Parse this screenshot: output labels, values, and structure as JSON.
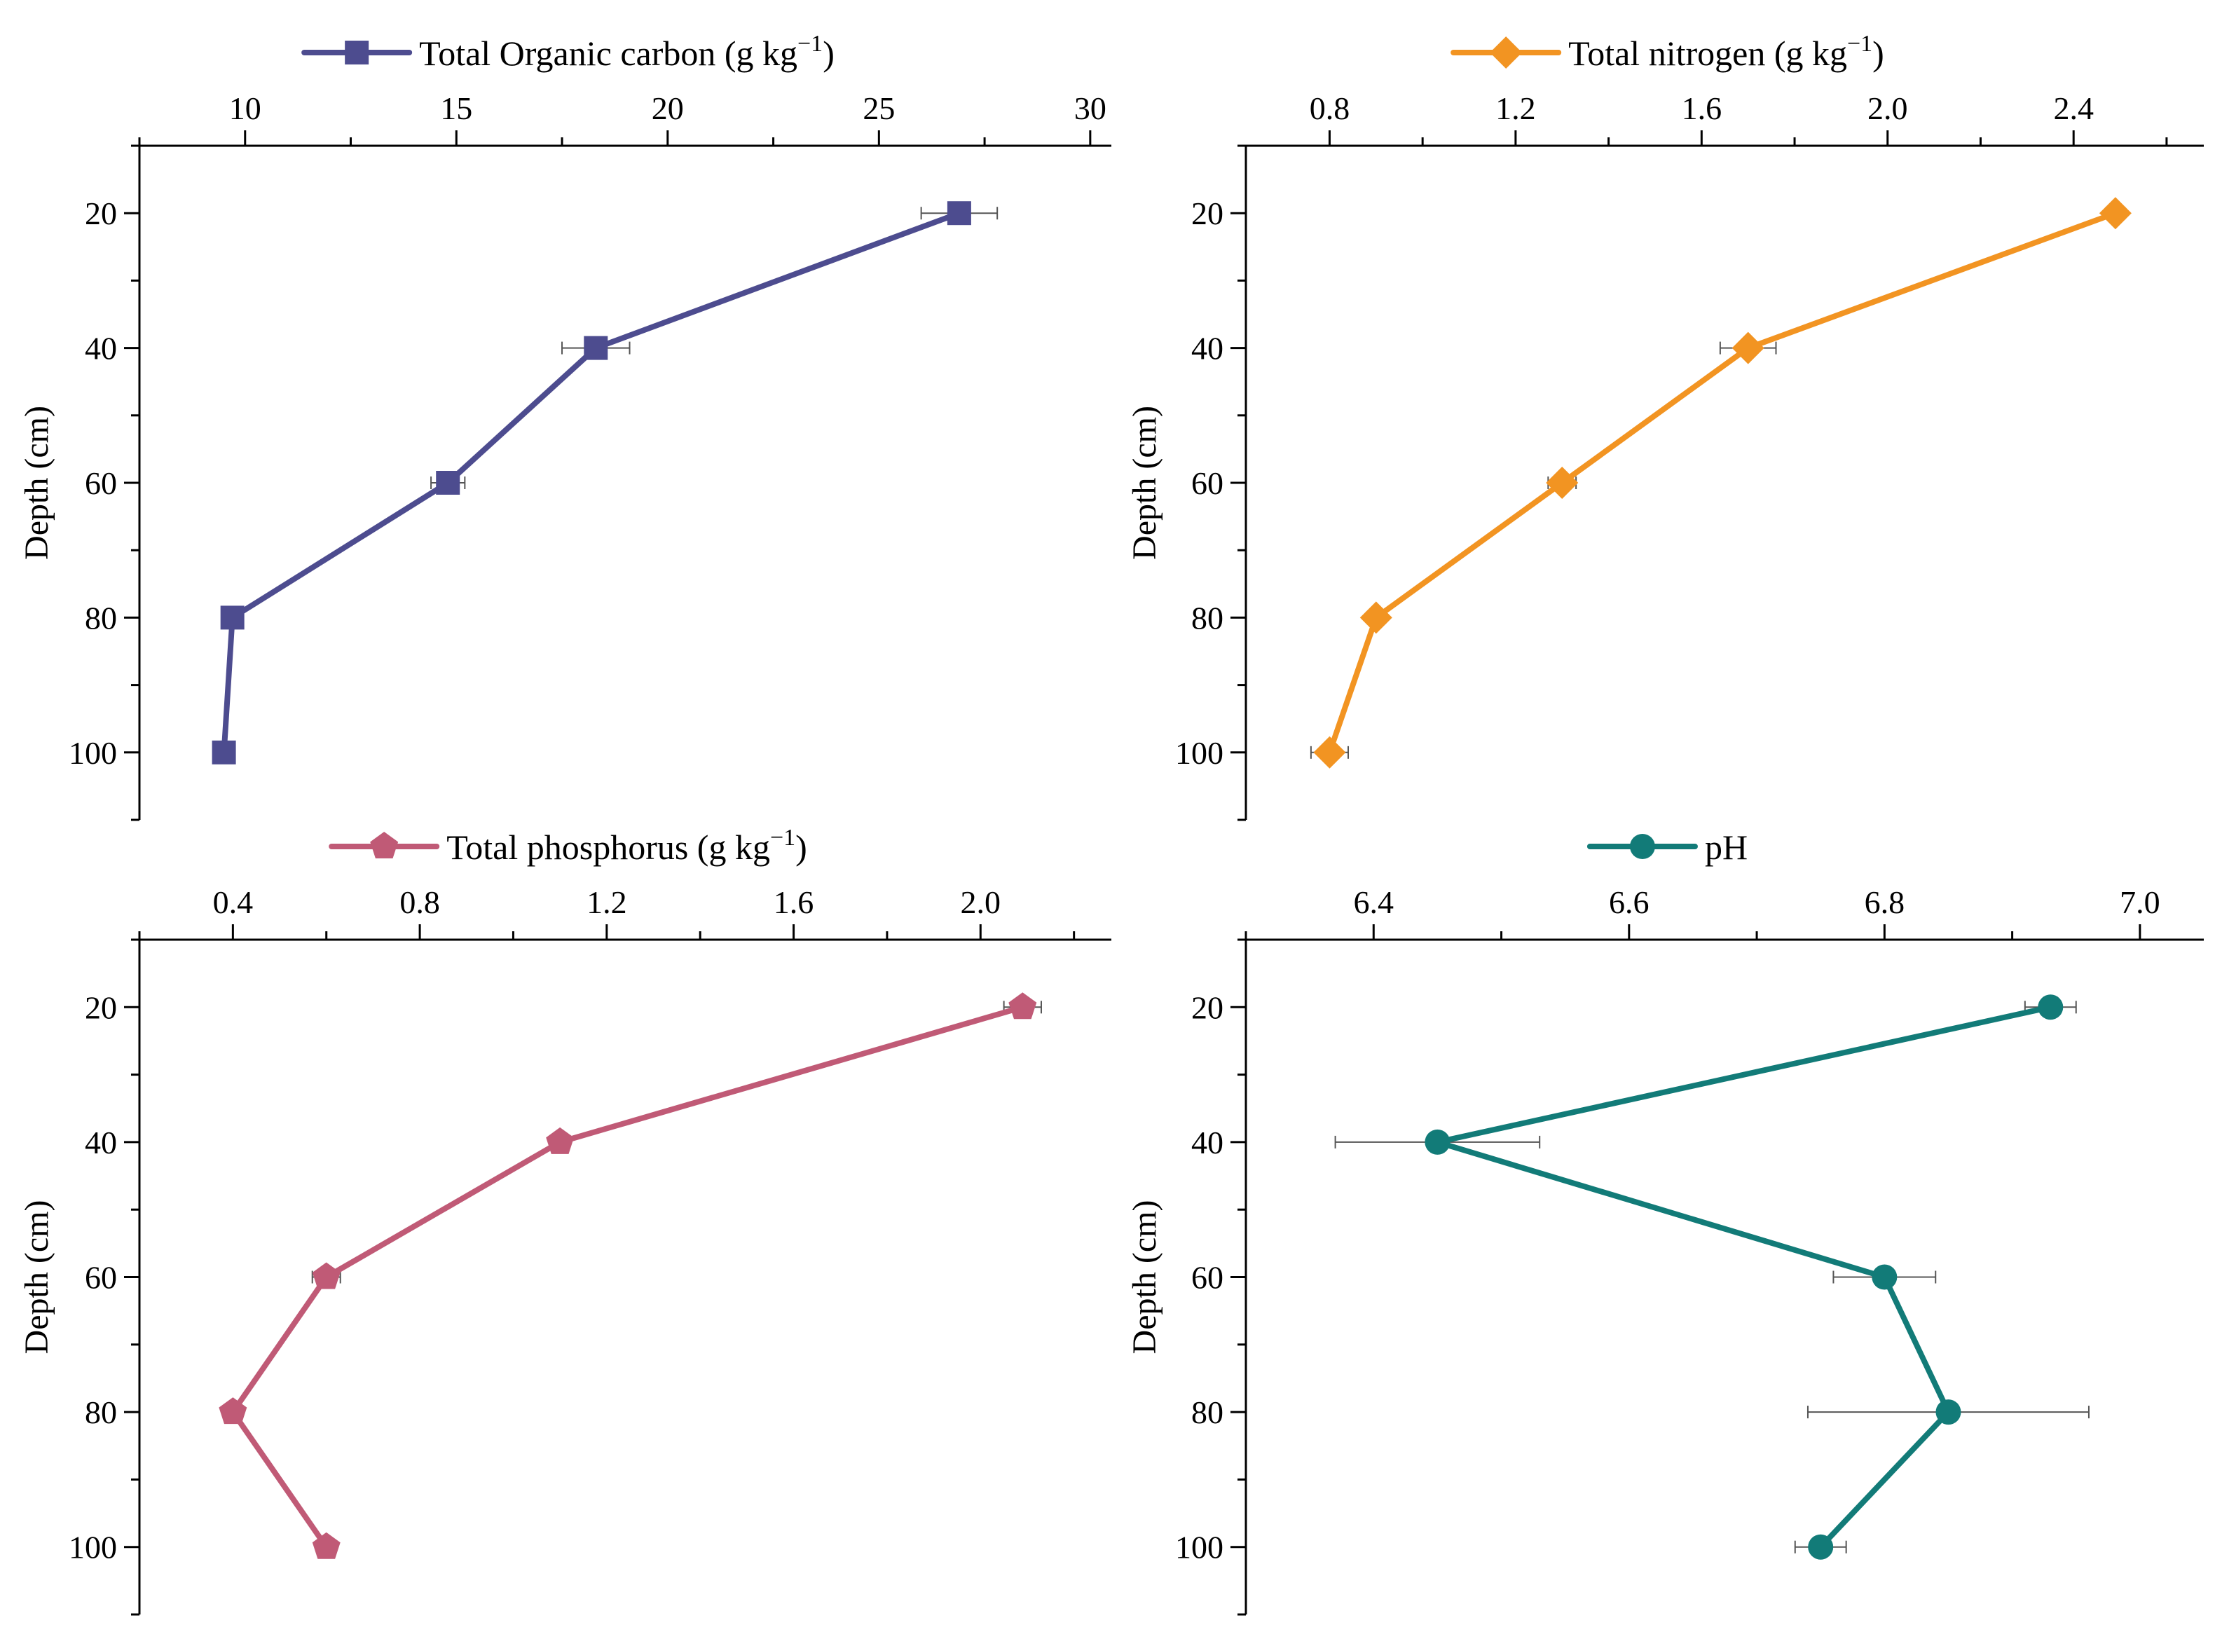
{
  "chart_data": [
    {
      "type": "line",
      "title": "",
      "xlabel": "",
      "ylabel": "Depth (cm)",
      "legend": {
        "label": "Total Organic carbon (g kg",
        "superscript": "−1",
        "suffix": ")",
        "marker": "square",
        "placement": "top"
      },
      "color": "#4d4c8f",
      "xaxis_position": "top",
      "xlim": [
        7.5,
        30.5
      ],
      "xticks": [
        10,
        15,
        20,
        25,
        30
      ],
      "xtick_labels": [
        "10",
        "15",
        "20",
        "25",
        "30"
      ],
      "ylim": [
        10,
        110
      ],
      "yticks": [
        20,
        40,
        60,
        80,
        100
      ],
      "ytick_labels": [
        "20",
        "40",
        "60",
        "80",
        "100"
      ],
      "series": [
        {
          "name": "Total Organic carbon",
          "x": [
            26.9,
            18.3,
            14.8,
            9.7,
            9.5
          ],
          "y": [
            20,
            40,
            60,
            80,
            100
          ],
          "xerr": [
            0.9,
            0.8,
            0.4,
            0.2,
            0.2
          ]
        }
      ]
    },
    {
      "type": "line",
      "title": "",
      "xlabel": "",
      "ylabel": "Depth (cm)",
      "legend": {
        "label": "Total nitrogen (g kg",
        "superscript": "−1",
        "suffix": ")",
        "marker": "diamond",
        "placement": "top"
      },
      "color": "#f29422",
      "xaxis_position": "top",
      "xlim": [
        0.62,
        2.68
      ],
      "xticks": [
        0.8,
        1.2,
        1.6,
        2.0,
        2.4
      ],
      "xtick_labels": [
        "0.8",
        "1.2",
        "1.6",
        "2.0",
        "2.4"
      ],
      "ylim": [
        10,
        110
      ],
      "yticks": [
        20,
        40,
        60,
        80,
        100
      ],
      "ytick_labels": [
        "20",
        "40",
        "60",
        "80",
        "100"
      ],
      "series": [
        {
          "name": "Total nitrogen",
          "x": [
            2.49,
            1.7,
            1.3,
            0.9,
            0.8
          ],
          "y": [
            20,
            40,
            60,
            80,
            100
          ],
          "xerr": [
            0.02,
            0.06,
            0.03,
            0.02,
            0.04
          ]
        }
      ]
    },
    {
      "type": "line",
      "title": "",
      "xlabel": "",
      "ylabel": "Depth (cm)",
      "legend": {
        "label": "Total phosphorus (g kg",
        "superscript": "−1",
        "suffix": ")",
        "marker": "pentagon",
        "placement": "top"
      },
      "color": "#c05a76",
      "xaxis_position": "top",
      "xlim": [
        0.2,
        2.28
      ],
      "xticks": [
        0.4,
        0.8,
        1.2,
        1.6,
        2.0
      ],
      "xtick_labels": [
        "0.4",
        "0.8",
        "1.2",
        "1.6",
        "2.0"
      ],
      "ylim": [
        10,
        110
      ],
      "yticks": [
        20,
        40,
        60,
        80,
        100
      ],
      "ytick_labels": [
        "20",
        "40",
        "60",
        "80",
        "100"
      ],
      "series": [
        {
          "name": "Total phosphorus",
          "x": [
            2.09,
            1.1,
            0.6,
            0.4,
            0.6
          ],
          "y": [
            20,
            40,
            60,
            80,
            100
          ],
          "xerr": [
            0.04,
            0.02,
            0.03,
            0.02,
            0.02
          ]
        }
      ]
    },
    {
      "type": "line",
      "title": "",
      "xlabel": "",
      "ylabel": "Depth (cm)",
      "legend": {
        "label": "pH",
        "superscript": "",
        "suffix": "",
        "marker": "circle",
        "placement": "top"
      },
      "color": "#127b78",
      "xaxis_position": "top",
      "xlim": [
        6.3,
        7.05
      ],
      "xticks": [
        6.4,
        6.6,
        6.8,
        7.0
      ],
      "xtick_labels": [
        "6.4",
        "6.6",
        "6.8",
        "7.0"
      ],
      "ylim": [
        10,
        110
      ],
      "yticks": [
        20,
        40,
        60,
        80,
        100
      ],
      "ytick_labels": [
        "20",
        "40",
        "60",
        "80",
        "100"
      ],
      "series": [
        {
          "name": "pH",
          "x": [
            6.93,
            6.45,
            6.8,
            6.85,
            6.75
          ],
          "y": [
            20,
            40,
            60,
            80,
            100
          ],
          "xerr": [
            0.02,
            0.08,
            0.04,
            0.11,
            0.02
          ]
        }
      ]
    }
  ]
}
